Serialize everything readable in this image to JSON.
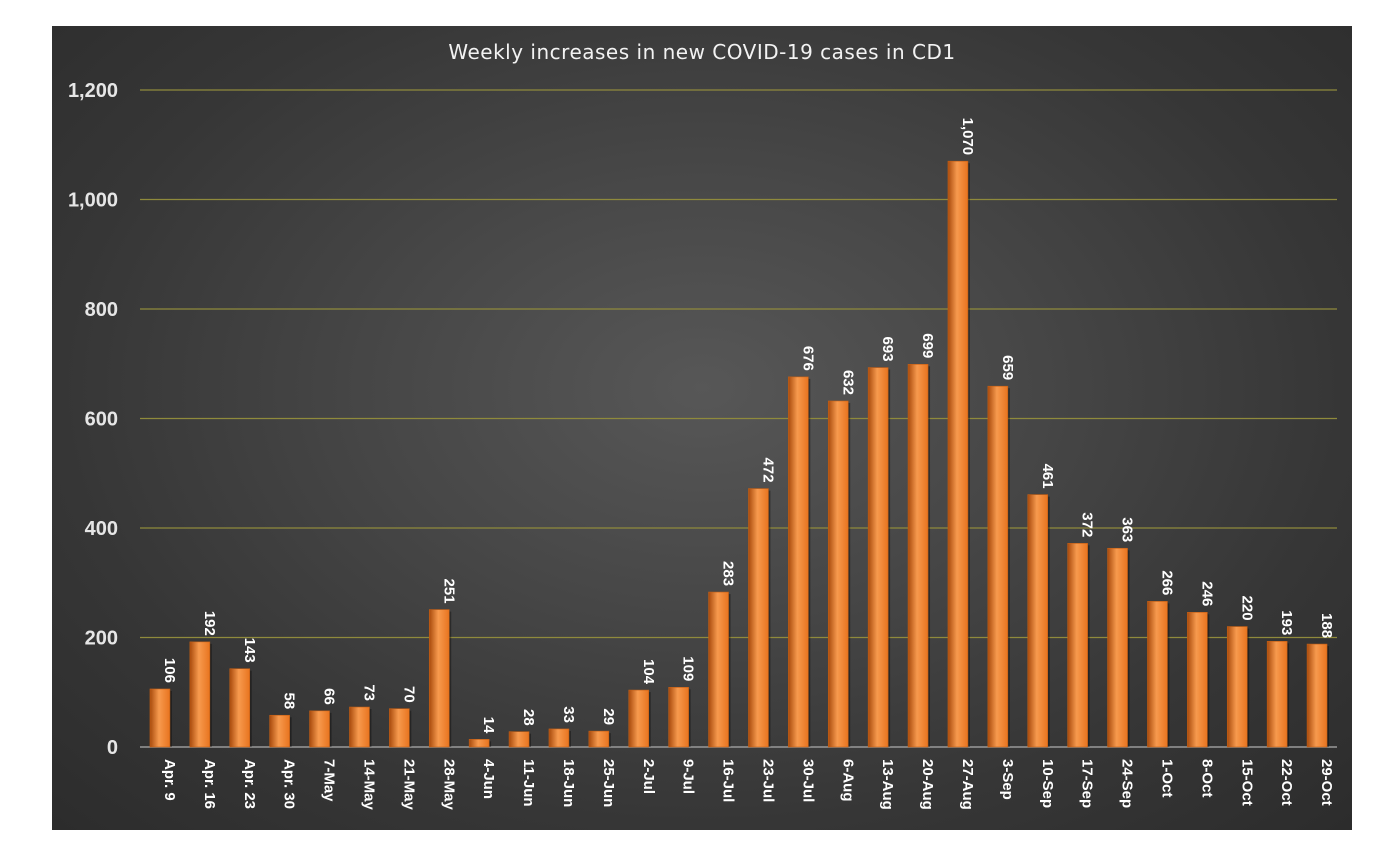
{
  "chart_data": {
    "type": "bar",
    "title": "Weekly increases in new COVID-19 cases in CD1",
    "xlabel": "",
    "ylabel": "",
    "ylim": [
      0,
      1200
    ],
    "yticks": [
      0,
      200,
      400,
      600,
      800,
      1000,
      1200
    ],
    "ytick_labels": [
      "0",
      "200",
      "400",
      "600",
      "800",
      "1,000",
      "1,200"
    ],
    "grid": true,
    "categories": [
      "Apr. 9",
      "Apr. 16",
      "Apr. 23",
      "Apr. 30",
      "7-May",
      "14-May",
      "21-May",
      "28-May",
      "4-Jun",
      "11-Jun",
      "18-Jun",
      "25-Jun",
      "2-Jul",
      "9-Jul",
      "16-Jul",
      "23-Jul",
      "30-Jul",
      "6-Aug",
      "13-Aug",
      "20-Aug",
      "27-Aug",
      "3-Sep",
      "10-Sep",
      "17-Sep",
      "24-Sep",
      "1-Oct",
      "8-Oct",
      "15-Oct",
      "22-Oct",
      "29-Oct"
    ],
    "values": [
      106,
      192,
      143,
      58,
      66,
      73,
      70,
      251,
      14,
      28,
      33,
      29,
      104,
      109,
      283,
      472,
      676,
      632,
      693,
      699,
      1070,
      659,
      461,
      372,
      363,
      266,
      246,
      220,
      193,
      188
    ],
    "value_labels": [
      "106",
      "192",
      "143",
      "58",
      "66",
      "73",
      "70",
      "251",
      "14",
      "28",
      "33",
      "29",
      "104",
      "109",
      "283",
      "472",
      "676",
      "632",
      "693",
      "699",
      "1,070",
      "659",
      "461",
      "372",
      "363",
      "266",
      "246",
      "220",
      "193",
      "188"
    ],
    "colors": {
      "bar": "#e8741f",
      "bar_dark": "#a84a0c",
      "bar_light": "#f79a4e",
      "grid": "#8f8a3c",
      "axis": "#9a9a9a"
    }
  }
}
